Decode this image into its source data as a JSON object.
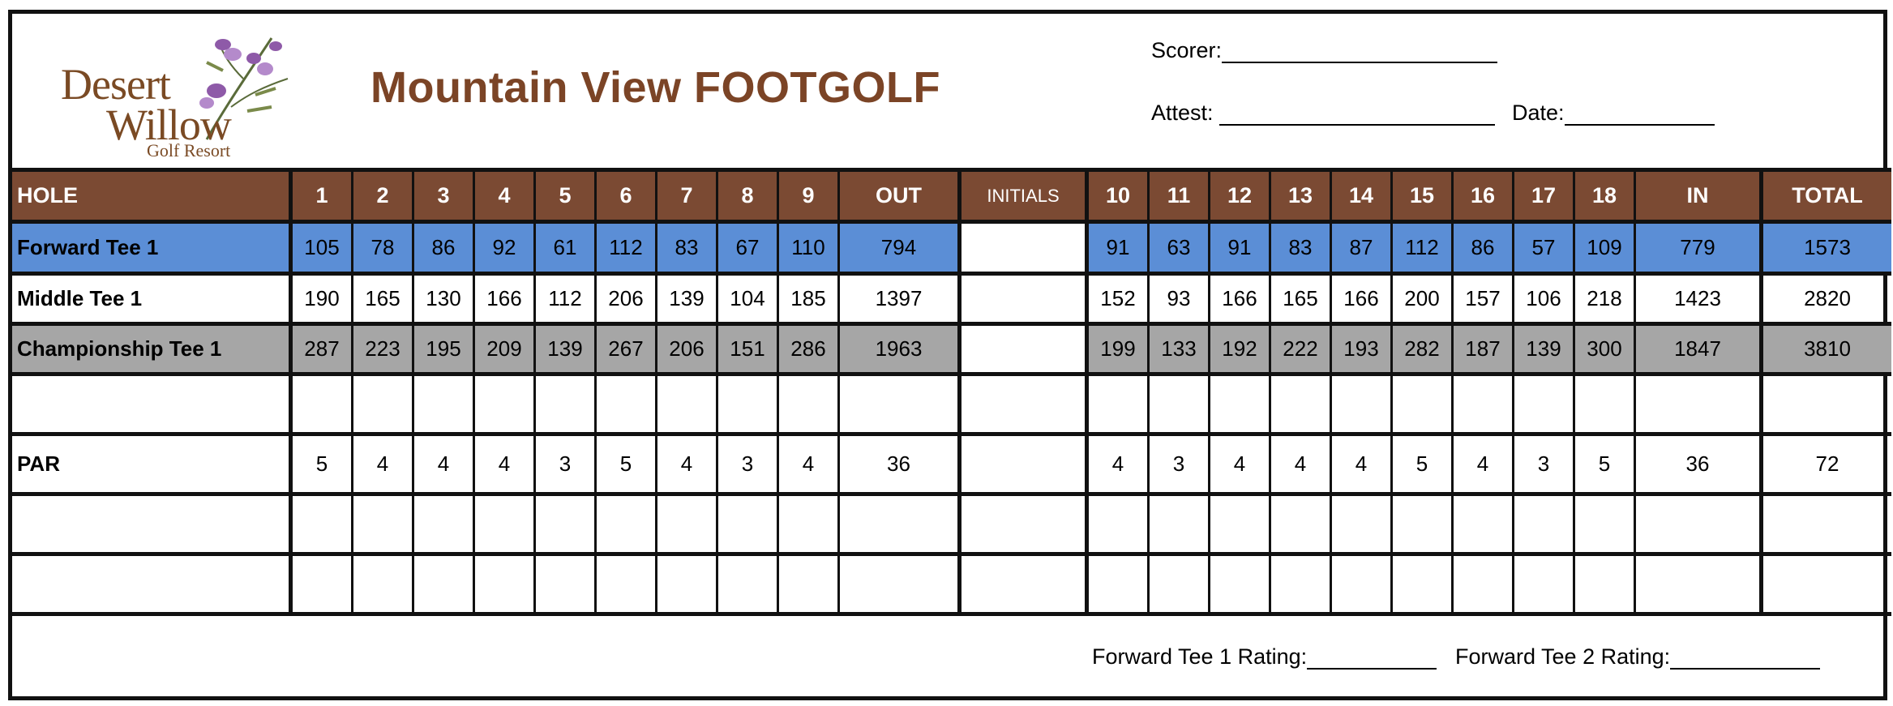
{
  "logo": {
    "line1": "Desert",
    "line2": "Willow",
    "line3": "Golf Resort"
  },
  "title": "Mountain View FOOTGOLF",
  "signatures": {
    "scorer": "Scorer:",
    "attest": "Attest:",
    "date": "Date:"
  },
  "table": {
    "headers": {
      "hole": "HOLE",
      "front": [
        "1",
        "2",
        "3",
        "4",
        "5",
        "6",
        "7",
        "8",
        "9"
      ],
      "out": "OUT",
      "initials": "INITIALS",
      "back": [
        "10",
        "11",
        "12",
        "13",
        "14",
        "15",
        "16",
        "17",
        "18"
      ],
      "in": "IN",
      "total": "TOTAL"
    },
    "rows": [
      {
        "label": "Forward Tee 1",
        "front": [
          "105",
          "78",
          "86",
          "92",
          "61",
          "112",
          "83",
          "67",
          "110"
        ],
        "out": "794",
        "back": [
          "91",
          "63",
          "91",
          "83",
          "87",
          "112",
          "86",
          "57",
          "109"
        ],
        "in": "779",
        "total": "1573"
      },
      {
        "label": "Middle Tee 1",
        "front": [
          "190",
          "165",
          "130",
          "166",
          "112",
          "206",
          "139",
          "104",
          "185"
        ],
        "out": "1397",
        "back": [
          "152",
          "93",
          "166",
          "165",
          "166",
          "200",
          "157",
          "106",
          "218"
        ],
        "in": "1423",
        "total": "2820"
      },
      {
        "label": "Championship  Tee 1",
        "front": [
          "287",
          "223",
          "195",
          "209",
          "139",
          "267",
          "206",
          "151",
          "286"
        ],
        "out": "1963",
        "back": [
          "199",
          "133",
          "192",
          "222",
          "193",
          "282",
          "187",
          "139",
          "300"
        ],
        "in": "1847",
        "total": "3810"
      },
      {
        "label": "",
        "front": [
          "",
          "",
          "",
          "",
          "",
          "",
          "",
          "",
          ""
        ],
        "out": "",
        "back": [
          "",
          "",
          "",
          "",
          "",
          "",
          "",
          "",
          ""
        ],
        "in": "",
        "total": ""
      },
      {
        "label": "PAR",
        "front": [
          "5",
          "4",
          "4",
          "4",
          "3",
          "5",
          "4",
          "3",
          "4"
        ],
        "out": "36",
        "back": [
          "4",
          "3",
          "4",
          "4",
          "4",
          "5",
          "4",
          "3",
          "5"
        ],
        "in": "36",
        "total": "72"
      },
      {
        "label": "",
        "front": [
          "",
          "",
          "",
          "",
          "",
          "",
          "",
          "",
          ""
        ],
        "out": "",
        "back": [
          "",
          "",
          "",
          "",
          "",
          "",
          "",
          "",
          ""
        ],
        "in": "",
        "total": ""
      },
      {
        "label": "",
        "front": [
          "",
          "",
          "",
          "",
          "",
          "",
          "",
          "",
          ""
        ],
        "out": "",
        "back": [
          "",
          "",
          "",
          "",
          "",
          "",
          "",
          "",
          ""
        ],
        "in": "",
        "total": ""
      }
    ]
  },
  "footer": {
    "rating1": "Forward Tee 1 Rating:",
    "rating2": "Forward Tee 2 Rating:"
  },
  "colors": {
    "brown": "#7b4a33",
    "title_brown": "#7b4426",
    "forward_blue": "#5b8ed6",
    "championship_gray": "#a6a6a6"
  }
}
